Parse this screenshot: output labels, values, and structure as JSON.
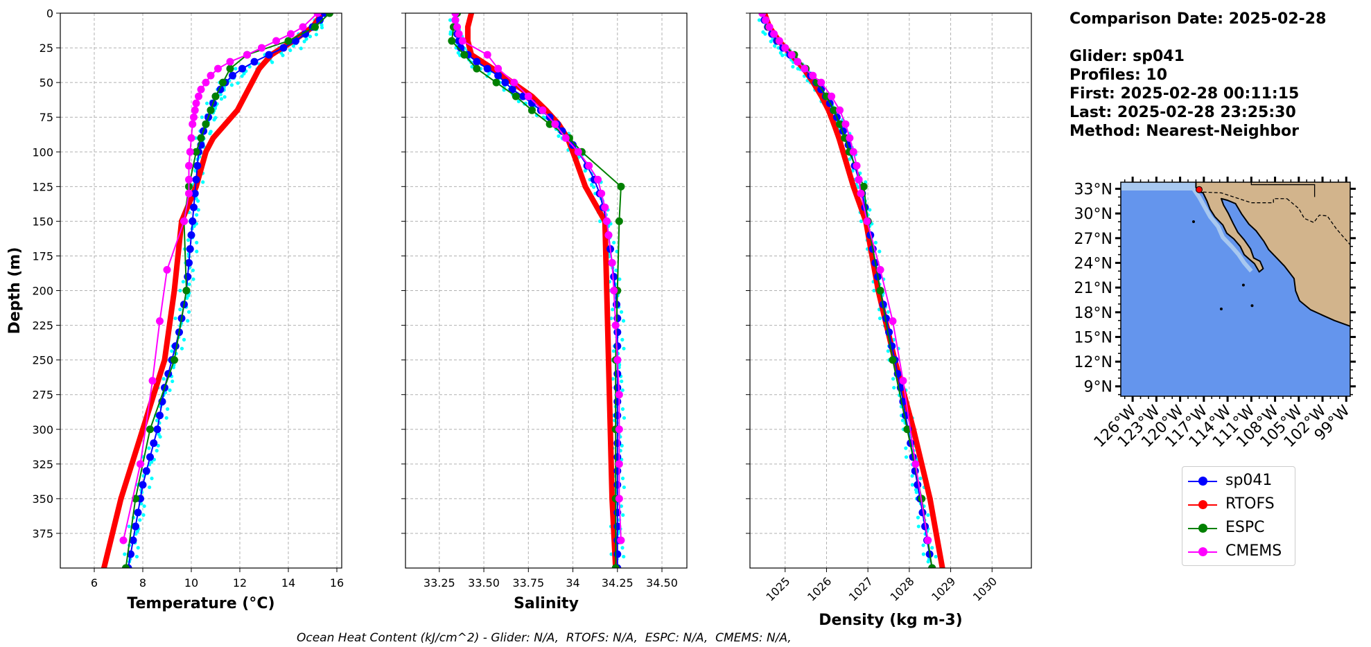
{
  "info": {
    "comparison_date": "Comparison Date: 2025-02-28",
    "glider": "Glider: sp041",
    "profiles": "Profiles: 10",
    "first": "First: 2025-02-28 00:11:15",
    "last": "Last: 2025-02-28 23:25:30",
    "method": "Method: Nearest-Neighbor"
  },
  "footer": "Ocean Heat Content (kJ/cm^2) - Glider: N/A,  RTOFS: N/A,  ESPC: N/A,  CMEMS: N/A,",
  "legend": [
    {
      "name": "sp041",
      "color": "#0000ff"
    },
    {
      "name": "RTOFS",
      "color": "#ff0000"
    },
    {
      "name": "ESPC",
      "color": "#008000"
    },
    {
      "name": "CMEMS",
      "color": "#ff00ff"
    }
  ],
  "colors": {
    "raw_points": "#00ffff",
    "grid": "#b0b0b0",
    "land": "#d2b48c",
    "ocean": "#6495ed",
    "shelf": "#a8c8f0"
  },
  "chart_data": [
    {
      "type": "line",
      "xlabel": "Temperature (°C)",
      "ylabel": "Depth (m)",
      "xlim": [
        4.6,
        16.2
      ],
      "ylim": [
        400,
        0
      ],
      "xticks": [
        6,
        8,
        10,
        12,
        14,
        16
      ],
      "yticks": [
        0,
        25,
        50,
        75,
        100,
        125,
        150,
        175,
        200,
        225,
        250,
        275,
        300,
        325,
        350,
        375
      ],
      "grid": true,
      "series": [
        {
          "name": "sp041",
          "depth": [
            0,
            5,
            10,
            15,
            20,
            25,
            30,
            35,
            40,
            45,
            50,
            55,
            60,
            65,
            70,
            75,
            80,
            85,
            90,
            95,
            100,
            110,
            120,
            130,
            140,
            150,
            160,
            170,
            180,
            190,
            200,
            210,
            220,
            230,
            240,
            250,
            260,
            270,
            280,
            290,
            300,
            310,
            320,
            330,
            340,
            350,
            360,
            370,
            380,
            390,
            400
          ],
          "values": [
            15.5,
            15.3,
            15.0,
            14.7,
            14.3,
            13.8,
            13.2,
            12.6,
            12.1,
            11.7,
            11.4,
            11.2,
            11.0,
            10.9,
            10.8,
            10.7,
            10.6,
            10.5,
            10.4,
            10.4,
            10.3,
            10.25,
            10.2,
            10.15,
            10.1,
            10.05,
            10.0,
            9.95,
            9.9,
            9.85,
            9.8,
            9.7,
            9.6,
            9.5,
            9.35,
            9.2,
            9.05,
            8.9,
            8.8,
            8.7,
            8.6,
            8.45,
            8.3,
            8.15,
            8.0,
            7.9,
            7.8,
            7.7,
            7.6,
            7.5,
            7.4
          ]
        },
        {
          "name": "RTOFS",
          "depth": [
            0,
            10,
            20,
            30,
            40,
            50,
            60,
            70,
            80,
            90,
            100,
            125,
            150,
            200,
            250,
            300,
            350,
            400
          ],
          "values": [
            15.4,
            15.0,
            14.2,
            13.3,
            12.8,
            12.5,
            12.2,
            11.9,
            11.4,
            10.9,
            10.6,
            10.2,
            9.6,
            9.3,
            8.9,
            8.0,
            7.1,
            6.4
          ]
        },
        {
          "name": "ESPC",
          "depth": [
            0,
            10,
            20,
            30,
            40,
            50,
            60,
            70,
            80,
            90,
            100,
            125,
            150,
            200,
            250,
            300,
            350,
            400
          ],
          "values": [
            15.7,
            15.1,
            14.0,
            12.3,
            11.6,
            11.3,
            11.0,
            10.8,
            10.6,
            10.4,
            10.2,
            9.9,
            9.7,
            9.8,
            9.3,
            8.3,
            7.7,
            7.3
          ]
        },
        {
          "name": "CMEMS",
          "depth": [
            0,
            10,
            15,
            20,
            25,
            30,
            35,
            40,
            45,
            50,
            55,
            60,
            65,
            70,
            75,
            80,
            90,
            100,
            110,
            120,
            130,
            150,
            185,
            222,
            265,
            325,
            380
          ],
          "values": [
            15.2,
            14.6,
            14.1,
            13.5,
            12.9,
            12.3,
            11.6,
            11.1,
            10.8,
            10.6,
            10.4,
            10.3,
            10.2,
            10.15,
            10.1,
            10.05,
            10.0,
            9.95,
            9.9,
            9.9,
            9.9,
            9.7,
            9.0,
            8.7,
            8.4,
            7.9,
            7.2
          ]
        }
      ]
    },
    {
      "type": "line",
      "xlabel": "Salinity",
      "ylim": [
        400,
        0
      ],
      "xlim": [
        33.06,
        34.64
      ],
      "xticks": [
        33.25,
        33.5,
        33.75,
        34.0,
        34.25,
        34.5
      ],
      "grid": true,
      "series": [
        {
          "name": "sp041",
          "depth": [
            0,
            5,
            10,
            15,
            20,
            25,
            30,
            35,
            40,
            45,
            50,
            55,
            60,
            65,
            70,
            75,
            80,
            85,
            90,
            95,
            100,
            110,
            120,
            130,
            140,
            150,
            160,
            170,
            180,
            190,
            200,
            210,
            220,
            230,
            240,
            250,
            260,
            270,
            280,
            290,
            300,
            310,
            320,
            330,
            340,
            350,
            360,
            370,
            380,
            390,
            400
          ],
          "values": [
            33.34,
            33.34,
            33.34,
            33.35,
            33.36,
            33.37,
            33.41,
            33.46,
            33.52,
            33.58,
            33.62,
            33.66,
            33.72,
            33.77,
            33.82,
            33.87,
            33.91,
            33.94,
            33.97,
            34.0,
            34.03,
            34.08,
            34.12,
            34.15,
            34.17,
            34.19,
            34.2,
            34.21,
            34.22,
            34.23,
            34.24,
            34.245,
            34.25,
            34.25,
            34.25,
            34.25,
            34.25,
            34.25,
            34.25,
            34.25,
            34.25,
            34.25,
            34.25,
            34.25,
            34.25,
            34.25,
            34.25,
            34.25,
            34.25,
            34.25,
            34.25
          ]
        },
        {
          "name": "RTOFS",
          "depth": [
            0,
            10,
            20,
            30,
            40,
            50,
            60,
            70,
            80,
            90,
            100,
            125,
            150,
            200,
            250,
            300,
            350,
            400
          ],
          "values": [
            33.43,
            33.41,
            33.41,
            33.43,
            33.55,
            33.66,
            33.77,
            33.85,
            33.92,
            33.97,
            34.0,
            34.07,
            34.18,
            34.19,
            34.2,
            34.21,
            34.22,
            34.24
          ]
        },
        {
          "name": "ESPC",
          "depth": [
            0,
            10,
            20,
            30,
            40,
            50,
            60,
            70,
            80,
            90,
            100,
            125,
            150,
            200,
            250,
            300,
            350,
            400
          ],
          "values": [
            33.35,
            33.33,
            33.32,
            33.39,
            33.46,
            33.57,
            33.68,
            33.77,
            33.87,
            33.98,
            34.05,
            34.27,
            34.26,
            34.25,
            34.24,
            34.24,
            34.24,
            34.24
          ]
        },
        {
          "name": "CMEMS",
          "depth": [
            0,
            5,
            10,
            15,
            20,
            30,
            40,
            50,
            60,
            70,
            80,
            90,
            100,
            110,
            120,
            130,
            140,
            150,
            160,
            180,
            200,
            225,
            250,
            275,
            300,
            325,
            350,
            380
          ],
          "values": [
            33.34,
            33.34,
            33.35,
            33.36,
            33.38,
            33.52,
            33.58,
            33.67,
            33.75,
            33.83,
            33.9,
            33.96,
            34.03,
            34.09,
            34.14,
            34.16,
            34.18,
            34.19,
            34.2,
            34.22,
            34.23,
            34.24,
            34.25,
            34.26,
            34.26,
            34.26,
            34.26,
            34.27
          ]
        }
      ]
    },
    {
      "type": "line",
      "xlabel": "Density (kg m-3)",
      "ylim": [
        400,
        0
      ],
      "xlim": [
        1024.15,
        1030.95
      ],
      "xticks": [
        1025,
        1026,
        1027,
        1028,
        1029,
        1030
      ],
      "grid": true,
      "series": [
        {
          "name": "sp041",
          "depth": [
            0,
            5,
            10,
            15,
            20,
            25,
            30,
            35,
            40,
            45,
            50,
            55,
            60,
            65,
            70,
            75,
            80,
            85,
            90,
            95,
            100,
            110,
            120,
            130,
            140,
            150,
            160,
            170,
            180,
            190,
            200,
            210,
            220,
            230,
            240,
            250,
            260,
            270,
            280,
            290,
            300,
            310,
            320,
            330,
            340,
            350,
            360,
            370,
            380,
            390,
            400
          ],
          "values": [
            1024.45,
            1024.5,
            1024.58,
            1024.68,
            1024.8,
            1024.95,
            1025.12,
            1025.3,
            1025.47,
            1025.62,
            1025.75,
            1025.87,
            1025.98,
            1026.08,
            1026.17,
            1026.25,
            1026.33,
            1026.4,
            1026.47,
            1026.53,
            1026.58,
            1026.68,
            1026.78,
            1026.86,
            1026.93,
            1027.0,
            1027.06,
            1027.12,
            1027.18,
            1027.24,
            1027.3,
            1027.37,
            1027.44,
            1027.51,
            1027.58,
            1027.65,
            1027.72,
            1027.79,
            1027.85,
            1027.91,
            1027.97,
            1028.03,
            1028.09,
            1028.14,
            1028.2,
            1028.26,
            1028.32,
            1028.38,
            1028.43,
            1028.49,
            1028.55
          ]
        },
        {
          "name": "RTOFS",
          "depth": [
            0,
            10,
            20,
            30,
            40,
            50,
            60,
            70,
            80,
            90,
            100,
            125,
            150,
            200,
            250,
            300,
            350,
            400
          ],
          "values": [
            1024.5,
            1024.62,
            1024.85,
            1025.15,
            1025.45,
            1025.68,
            1025.88,
            1026.05,
            1026.18,
            1026.3,
            1026.4,
            1026.65,
            1026.95,
            1027.25,
            1027.65,
            1028.1,
            1028.5,
            1028.8
          ]
        },
        {
          "name": "ESPC",
          "depth": [
            0,
            10,
            20,
            30,
            40,
            50,
            60,
            70,
            80,
            90,
            100,
            125,
            150,
            200,
            250,
            300,
            350,
            400
          ],
          "values": [
            1024.45,
            1024.6,
            1024.85,
            1025.22,
            1025.5,
            1025.77,
            1026.0,
            1026.18,
            1026.32,
            1026.44,
            1026.55,
            1026.9,
            1027.0,
            1027.3,
            1027.6,
            1027.95,
            1028.3,
            1028.55
          ]
        },
        {
          "name": "CMEMS",
          "depth": [
            0,
            5,
            10,
            15,
            20,
            25,
            30,
            35,
            40,
            45,
            50,
            60,
            70,
            80,
            90,
            100,
            110,
            120,
            130,
            150,
            185,
            222,
            265,
            325,
            380
          ],
          "values": [
            1024.45,
            1024.53,
            1024.62,
            1024.73,
            1024.86,
            1025.0,
            1025.16,
            1025.3,
            1025.47,
            1025.67,
            1025.87,
            1026.12,
            1026.32,
            1026.46,
            1026.56,
            1026.65,
            1026.73,
            1026.78,
            1026.83,
            1026.98,
            1027.3,
            1027.6,
            1027.85,
            1028.15,
            1028.45
          ]
        }
      ]
    },
    {
      "type": "map",
      "lat_ticks": [
        "33°N",
        "30°N",
        "27°N",
        "24°N",
        "21°N",
        "18°N",
        "15°N",
        "12°N",
        "9°N"
      ],
      "lon_ticks": [
        "126°W",
        "123°W",
        "120°W",
        "117°W",
        "114°W",
        "111°W",
        "108°W",
        "105°W",
        "102°W",
        "99°W"
      ],
      "glider_position": {
        "lon": -117.6,
        "lat": 32.9
      }
    }
  ]
}
